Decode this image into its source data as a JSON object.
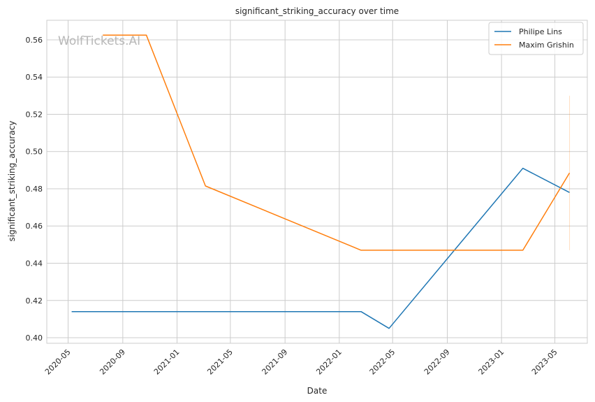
{
  "chart_data": {
    "type": "line",
    "title": "significant_striking_accuracy over time",
    "xlabel": "Date",
    "ylabel": "significant_striking_accuracy",
    "watermark": "WolfTickets.AI",
    "x_ticks": [
      "2020-05",
      "2020-09",
      "2021-01",
      "2021-05",
      "2021-09",
      "2022-01",
      "2022-05",
      "2022-09",
      "2023-01",
      "2023-05"
    ],
    "y_ticks": [
      "0.40",
      "0.42",
      "0.44",
      "0.46",
      "0.48",
      "0.50",
      "0.52",
      "0.54",
      "0.56"
    ],
    "xlim": [
      "2020-03-14",
      "2023-07-13"
    ],
    "ylim": [
      0.397,
      0.5705
    ],
    "grid": true,
    "legend_position": "top-right",
    "series": [
      {
        "name": "Philipe Lins",
        "color": "#1f77b4",
        "points": [
          {
            "x": "2020-05-09",
            "y": 0.414
          },
          {
            "x": "2022-02-19",
            "y": 0.414
          },
          {
            "x": "2022-04-23",
            "y": 0.405
          },
          {
            "x": "2023-02-18",
            "y": 0.491
          },
          {
            "x": "2023-06-03",
            "y": 0.478
          }
        ]
      },
      {
        "name": "Maxim Grishin",
        "color": "#ff7f0e",
        "points": [
          {
            "x": "2020-07-18",
            "y": 0.5625
          },
          {
            "x": "2020-10-24",
            "y": 0.5625
          },
          {
            "x": "2021-03-06",
            "y": 0.4815
          },
          {
            "x": "2022-02-19",
            "y": 0.447
          },
          {
            "x": "2023-02-18",
            "y": 0.447
          },
          {
            "x": "2023-06-03",
            "y": 0.4885
          }
        ],
        "error_band": {
          "x": "2023-06-03",
          "low": 0.447,
          "high": 0.53
        }
      }
    ]
  }
}
